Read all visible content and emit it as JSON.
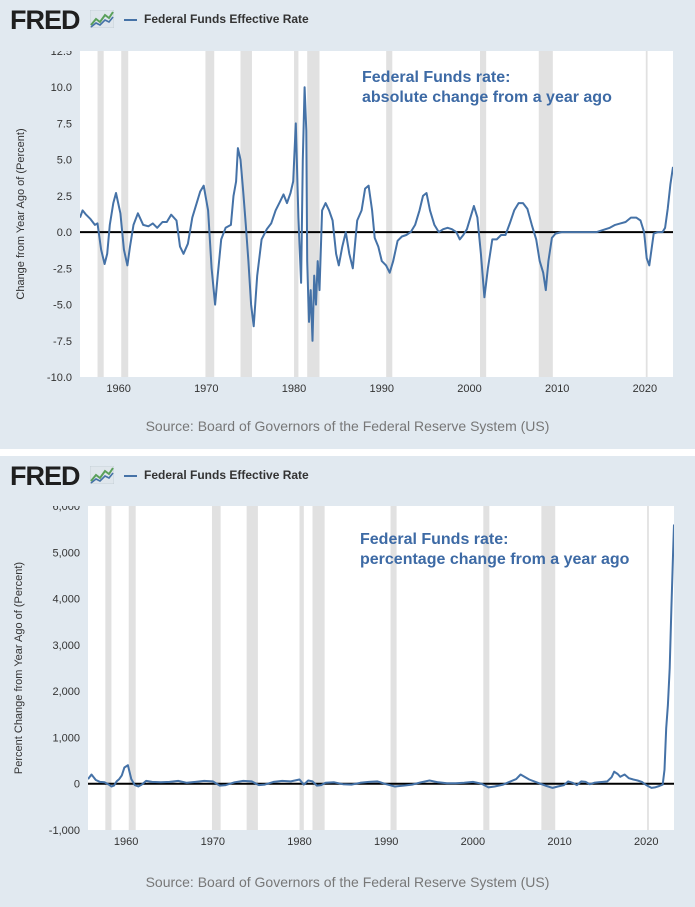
{
  "logo": {
    "text": "FRED",
    "icon": "fred-chart-icon"
  },
  "charts": [
    {
      "legend": "Federal Funds Effective Rate",
      "ylabel": "Change from Year Ago of (Percent)",
      "source": "Source: Board of Governors of the Federal Reserve System (US)",
      "annotation": [
        "Federal Funds rate:",
        "absolute change from a year ago"
      ],
      "yticks": [
        "12.5",
        "10.0",
        "7.5",
        "5.0",
        "2.5",
        "0.0",
        "-2.5",
        "-5.0",
        "-7.5",
        "-10.0"
      ],
      "xticks": [
        "1960",
        "1970",
        "1980",
        "1990",
        "2000",
        "2010",
        "2020"
      ]
    },
    {
      "legend": "Federal Funds Effective Rate",
      "ylabel": "Percent Change from Year Ago of (Percent)",
      "source": "Source: Board of Governors of the Federal Reserve System (US)",
      "annotation": [
        "Federal Funds rate:",
        "percentage change from a year ago"
      ],
      "yticks": [
        "6,000",
        "5,000",
        "4,000",
        "3,000",
        "2,000",
        "1,000",
        "0",
        "-1,000"
      ],
      "xticks": [
        "1960",
        "1970",
        "1980",
        "1990",
        "2000",
        "2010",
        "2020"
      ]
    }
  ],
  "colors": {
    "series": "#4572a7",
    "recession": "#e1e1e1",
    "zero": "#000000",
    "annotation": "#3d6aa5"
  },
  "chart_data": [
    {
      "type": "line",
      "title": "",
      "xlabel": "",
      "ylabel": "Change from Year Ago of (Percent)",
      "xlim": [
        1955.6,
        2023.2
      ],
      "ylim": [
        -10,
        12.5
      ],
      "grid": false,
      "recessions": [
        [
          1957.6,
          1958.3
        ],
        [
          1960.3,
          1961.1
        ],
        [
          1969.9,
          1970.9
        ],
        [
          1973.9,
          1975.2
        ],
        [
          1980.0,
          1980.5
        ],
        [
          1981.5,
          1982.9
        ],
        [
          1990.5,
          1991.2
        ],
        [
          2001.2,
          2001.9
        ],
        [
          2007.9,
          2009.5
        ],
        [
          2020.1,
          2020.3
        ]
      ],
      "series": [
        {
          "name": "Federal Funds Effective Rate",
          "x": [
            1955.6,
            1955.9,
            1956.3,
            1956.8,
            1957.3,
            1957.6,
            1958.0,
            1958.4,
            1958.7,
            1959.0,
            1959.4,
            1959.7,
            1960.2,
            1960.6,
            1961.0,
            1961.3,
            1961.7,
            1962.2,
            1962.8,
            1963.4,
            1963.9,
            1964.4,
            1965.0,
            1965.5,
            1966.0,
            1966.6,
            1967.0,
            1967.4,
            1967.9,
            1968.4,
            1968.9,
            1969.3,
            1969.7,
            1970.2,
            1970.6,
            1971.0,
            1971.3,
            1971.7,
            1972.2,
            1972.8,
            1973.1,
            1973.4,
            1973.6,
            1973.9,
            1974.2,
            1974.5,
            1974.8,
            1975.1,
            1975.4,
            1975.8,
            1976.3,
            1976.9,
            1977.4,
            1977.9,
            1978.4,
            1978.8,
            1979.2,
            1979.6,
            1979.9,
            1980.2,
            1980.5,
            1980.8,
            1981.0,
            1981.2,
            1981.4,
            1981.5,
            1981.7,
            1981.9,
            1982.1,
            1982.3,
            1982.5,
            1982.7,
            1982.9,
            1983.2,
            1983.6,
            1984.0,
            1984.4,
            1984.8,
            1985.1,
            1985.5,
            1985.9,
            1986.3,
            1986.7,
            1987.2,
            1987.7,
            1988.1,
            1988.5,
            1988.9,
            1989.2,
            1989.6,
            1990.0,
            1990.5,
            1990.9,
            1991.3,
            1991.8,
            1992.3,
            1992.8,
            1993.3,
            1993.8,
            1994.3,
            1994.7,
            1995.1,
            1995.5,
            1996.0,
            1996.5,
            1997.0,
            1997.5,
            1998.0,
            1998.5,
            1998.9,
            1999.3,
            1999.7,
            2000.1,
            2000.5,
            2000.9,
            2001.3,
            2001.7,
            2002.1,
            2002.6,
            2003.1,
            2003.6,
            2004.1,
            2004.6,
            2005.1,
            2005.6,
            2006.1,
            2006.6,
            2007.1,
            2007.6,
            2008.0,
            2008.4,
            2008.7,
            2009.0,
            2009.4,
            2009.8,
            2010.5,
            2011.5,
            2012.5,
            2013.5,
            2014.5,
            2015.5,
            2016.0,
            2016.6,
            2017.2,
            2017.8,
            2018.4,
            2019.0,
            2019.5,
            2019.9,
            2020.2,
            2020.5,
            2021.0,
            2021.5,
            2022.0,
            2022.3,
            2022.6,
            2022.9,
            2023.2
          ],
          "values": [
            1.0,
            1.5,
            1.2,
            0.9,
            0.5,
            0.6,
            -1.2,
            -2.2,
            -1.5,
            0.5,
            2.0,
            2.7,
            1.3,
            -1.2,
            -2.3,
            -1.0,
            0.5,
            1.3,
            0.5,
            0.4,
            0.6,
            0.3,
            0.7,
            0.7,
            1.2,
            0.8,
            -1.0,
            -1.5,
            -0.8,
            1.0,
            2.0,
            2.8,
            3.2,
            1.5,
            -2.5,
            -5.0,
            -3.0,
            -0.5,
            0.3,
            0.5,
            2.5,
            3.5,
            5.8,
            5.0,
            2.8,
            0.5,
            -2.0,
            -5.0,
            -6.5,
            -3.0,
            -0.5,
            0.2,
            0.6,
            1.5,
            2.1,
            2.6,
            2.0,
            2.7,
            3.5,
            7.5,
            1.0,
            -3.5,
            5.0,
            10.0,
            7.0,
            -2.0,
            -6.2,
            -4.0,
            -7.5,
            -3.0,
            -5.0,
            -2.0,
            -4.0,
            1.5,
            2.0,
            1.5,
            0.8,
            -1.5,
            -2.3,
            -1.0,
            0.0,
            -1.5,
            -2.5,
            0.8,
            1.5,
            3.0,
            3.2,
            1.5,
            -0.4,
            -1.0,
            -2.0,
            -2.3,
            -2.8,
            -2.0,
            -0.6,
            -0.3,
            -0.2,
            0.0,
            0.5,
            1.5,
            2.5,
            2.7,
            1.5,
            0.5,
            0.0,
            0.2,
            0.3,
            0.2,
            0.0,
            -0.5,
            -0.2,
            0.2,
            1.0,
            1.8,
            1.0,
            -1.5,
            -4.5,
            -2.5,
            -0.5,
            -0.5,
            -0.2,
            -0.2,
            0.6,
            1.5,
            2.0,
            2.0,
            1.6,
            0.5,
            -0.5,
            -2.0,
            -2.8,
            -4.0,
            -2.0,
            -0.4,
            -0.1,
            0.0,
            0.0,
            0.0,
            0.0,
            0.0,
            0.2,
            0.3,
            0.5,
            0.6,
            0.7,
            1.0,
            1.0,
            0.8,
            0.0,
            -1.8,
            -2.3,
            -0.1,
            0.0,
            0.0,
            0.3,
            1.6,
            3.3,
            4.5
          ]
        }
      ]
    },
    {
      "type": "line",
      "title": "",
      "xlabel": "",
      "ylabel": "Percent Change from Year Ago of (Percent)",
      "xlim": [
        1955.6,
        2023.2
      ],
      "ylim": [
        -1000,
        6000
      ],
      "grid": false,
      "recessions": [
        [
          1957.6,
          1958.3
        ],
        [
          1960.3,
          1961.1
        ],
        [
          1969.9,
          1970.9
        ],
        [
          1973.9,
          1975.2
        ],
        [
          1980.0,
          1980.5
        ],
        [
          1981.5,
          1982.9
        ],
        [
          1990.5,
          1991.2
        ],
        [
          2001.2,
          2001.9
        ],
        [
          2007.9,
          2009.5
        ],
        [
          2020.1,
          2020.3
        ]
      ],
      "series": [
        {
          "name": "Federal Funds Effective Rate",
          "x": [
            1955.6,
            1956.0,
            1956.5,
            1957.0,
            1957.5,
            1958.0,
            1958.3,
            1958.6,
            1958.9,
            1959.2,
            1959.5,
            1959.8,
            1960.2,
            1960.6,
            1961.0,
            1961.4,
            1961.8,
            1962.3,
            1963.0,
            1964.0,
            1965.0,
            1966.0,
            1967.0,
            1968.0,
            1969.0,
            1970.0,
            1970.8,
            1971.5,
            1972.5,
            1973.5,
            1974.5,
            1975.3,
            1976.0,
            1977.0,
            1978.0,
            1979.0,
            1980.0,
            1980.5,
            1981.0,
            1981.5,
            1982.0,
            1982.5,
            1983.0,
            1984.0,
            1985.0,
            1986.0,
            1987.0,
            1988.0,
            1989.0,
            1990.0,
            1991.0,
            1992.0,
            1993.0,
            1994.0,
            1995.0,
            1996.0,
            1997.0,
            1998.0,
            1999.0,
            2000.0,
            2001.0,
            2001.8,
            2002.5,
            2003.5,
            2004.2,
            2005.0,
            2005.5,
            2006.5,
            2007.5,
            2008.5,
            2009.2,
            2009.8,
            2010.5,
            2011.0,
            2011.5,
            2012.0,
            2012.5,
            2013.0,
            2013.5,
            2014.0,
            2014.5,
            2015.0,
            2015.5,
            2016.0,
            2016.3,
            2016.7,
            2017.0,
            2017.5,
            2018.0,
            2018.5,
            2019.0,
            2019.5,
            2020.0,
            2020.3,
            2020.6,
            2021.0,
            2021.5,
            2021.9,
            2022.1,
            2022.3,
            2022.5,
            2022.7,
            2022.9,
            2023.1,
            2023.2
          ],
          "values": [
            100,
            200,
            80,
            40,
            30,
            -20,
            -60,
            -40,
            50,
            100,
            180,
            350,
            400,
            100,
            -30,
            -60,
            -20,
            60,
            40,
            30,
            40,
            60,
            20,
            40,
            60,
            50,
            -40,
            -30,
            30,
            60,
            50,
            -30,
            -20,
            40,
            60,
            50,
            90,
            -20,
            70,
            50,
            -40,
            -30,
            20,
            30,
            -10,
            -20,
            20,
            40,
            50,
            -10,
            -60,
            -40,
            -20,
            30,
            70,
            30,
            10,
            10,
            20,
            40,
            0,
            -80,
            -60,
            -20,
            40,
            100,
            200,
            90,
            20,
            -50,
            -90,
            -60,
            -30,
            50,
            20,
            -30,
            50,
            40,
            -10,
            20,
            30,
            40,
            50,
            140,
            260,
            210,
            150,
            200,
            120,
            90,
            70,
            40,
            -30,
            -60,
            -90,
            -80,
            -50,
            -20,
            300,
            1200,
            1700,
            2500,
            3800,
            5000,
            5600
          ]
        }
      ]
    }
  ]
}
